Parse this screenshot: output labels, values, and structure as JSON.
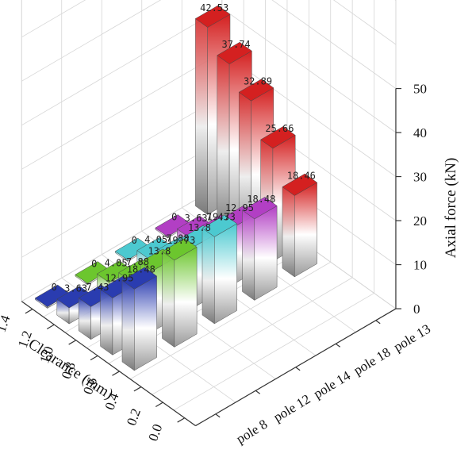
{
  "chart_data": {
    "type": "bar3d",
    "title": "",
    "xlabel": "Clearance (mm)",
    "ylabel": "",
    "zlabel": "Axial force (kN)",
    "clearance_ticks": [
      "1.4",
      "1.2",
      "1.0",
      "0.8",
      "0.6",
      "0.4",
      "0.2",
      "0.0"
    ],
    "z_ticks": [
      "0",
      "10",
      "20",
      "30",
      "40",
      "50"
    ],
    "zlim": [
      0,
      50
    ],
    "clearance_values": [
      1.4,
      1.2,
      1.0,
      0.8,
      0.6
    ],
    "series": [
      {
        "name": "pole 8",
        "color": "#2a3cb0",
        "values": [
          0,
          3.63,
          7.43,
          12.95,
          18.48
        ],
        "labels": [
          "0",
          "3.63",
          "7.43",
          "12.95",
          "18.48"
        ]
      },
      {
        "name": "pole 12",
        "color": "#6cc62e",
        "values": [
          0,
          4.05,
          7.88,
          13.8,
          19.73
        ],
        "labels": [
          "0",
          "4.05",
          "7.88",
          "13.8",
          "19.73"
        ]
      },
      {
        "name": "pole 14",
        "color": "#4cc9d0",
        "values": [
          0,
          4.05,
          7.88,
          13.8,
          19.73
        ],
        "labels": [
          "0",
          "4.05",
          "7.88",
          "13.8",
          "19.73"
        ]
      },
      {
        "name": "pole 18",
        "color": "#b23fc4",
        "values": [
          0,
          3.63,
          7.43,
          12.95,
          18.48
        ],
        "labels": [
          "0",
          "3.63",
          "7.43",
          "12.95",
          "18.48"
        ]
      },
      {
        "name": "pole 13",
        "color": "#d42020",
        "values": [
          42.53,
          37.74,
          32.89,
          25.66,
          18.46
        ],
        "labels": [
          "42.53",
          "37.74",
          "32.89",
          "25.66",
          "18.46"
        ]
      }
    ]
  }
}
